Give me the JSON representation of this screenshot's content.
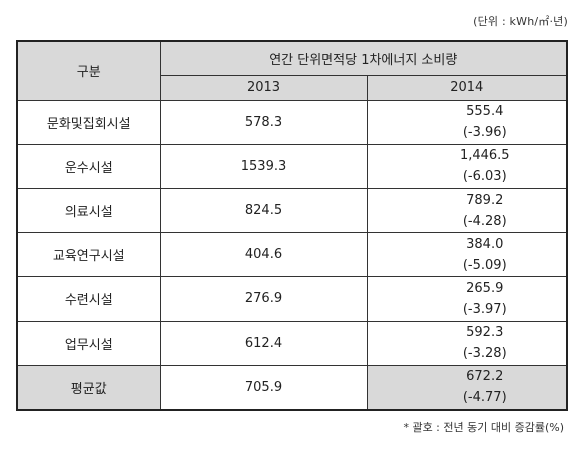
{
  "unit_note": "(단위 : kWh/㎡·년)",
  "header": {
    "category_label": "구분",
    "group_label": "연간 단위면적당 1차에너지 소비량",
    "year_a": "2013",
    "year_b": "2014"
  },
  "rows": [
    {
      "category": "문화및집회시설",
      "v2013": "578.3",
      "v2014": "555.4",
      "change": "(-3.96)"
    },
    {
      "category": "운수시설",
      "v2013": "1539.3",
      "v2014": "1,446.5",
      "change": "(-6.03)"
    },
    {
      "category": "의료시설",
      "v2013": "824.5",
      "v2014": "789.2",
      "change": "(-4.28)"
    },
    {
      "category": "교육연구시설",
      "v2013": "404.6",
      "v2014": "384.0",
      "change": "(-5.09)"
    },
    {
      "category": "수련시설",
      "v2013": "276.9",
      "v2014": "265.9",
      "change": "(-3.97)"
    },
    {
      "category": "업무시설",
      "v2013": "612.4",
      "v2014": "592.3",
      "change": "(-3.28)"
    }
  ],
  "average": {
    "category": "평균값",
    "v2013": "705.9",
    "v2014": "672.2",
    "change": "(-4.77)"
  },
  "footnote": "* 괄호 : 전년 동기 대비 증감률(%)"
}
